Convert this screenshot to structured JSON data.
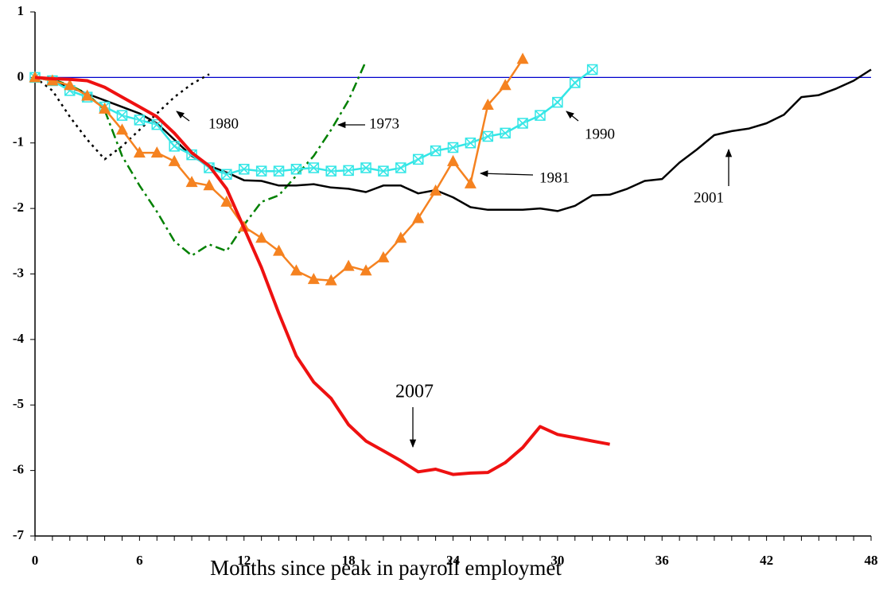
{
  "chart_data": {
    "type": "line",
    "x_label": "Months since peak in payroll employmet",
    "x": [
      0,
      1,
      2,
      3,
      4,
      5,
      6,
      7,
      8,
      9,
      10,
      11,
      12,
      13,
      14,
      15,
      16,
      17,
      18,
      19,
      20,
      21,
      22,
      23,
      24,
      25,
      26,
      27,
      28,
      29,
      30,
      31,
      32,
      33,
      34,
      35,
      36,
      37,
      38,
      39,
      40,
      41,
      42,
      43,
      44,
      45,
      46,
      47,
      48
    ],
    "xlim": [
      0,
      48
    ],
    "xticks": [
      0,
      6,
      12,
      18,
      24,
      30,
      36,
      42,
      48
    ],
    "ylim": [
      -7,
      1
    ],
    "yticks": [
      1,
      0,
      -1,
      -2,
      -3,
      -4,
      -5,
      -6,
      -7
    ],
    "reference_line": {
      "value": 0,
      "color": "#0000cc"
    },
    "series": [
      {
        "name": "1980",
        "color": "#000000",
        "dash": "dotted",
        "values": [
          0,
          -0.2,
          -0.6,
          -0.95,
          -1.25,
          -1.05,
          -0.8,
          -0.55,
          -0.3,
          -0.1,
          0.05,
          null,
          null,
          null,
          null,
          null,
          null,
          null,
          null,
          null,
          null,
          null,
          null,
          null,
          null,
          null,
          null,
          null,
          null,
          null,
          null,
          null,
          null,
          null,
          null,
          null,
          null,
          null,
          null,
          null,
          null,
          null,
          null,
          null,
          null,
          null,
          null,
          null,
          null
        ]
      },
      {
        "name": "1973",
        "color": "#008000",
        "dash": "dashdot",
        "values": [
          0,
          -0.03,
          -0.12,
          -0.25,
          -0.5,
          -1.2,
          -1.65,
          -2.05,
          -2.5,
          -2.72,
          -2.55,
          -2.65,
          -2.25,
          -1.9,
          -1.8,
          -1.5,
          -1.2,
          -0.8,
          -0.35,
          0.25,
          null,
          null,
          null,
          null,
          null,
          null,
          null,
          null,
          null,
          null,
          null,
          null,
          null,
          null,
          null,
          null,
          null,
          null,
          null,
          null,
          null,
          null,
          null,
          null,
          null,
          null,
          null,
          null,
          null
        ]
      },
      {
        "name": "2001",
        "color": "#000000",
        "dash": "solid",
        "values": [
          0,
          -0.05,
          -0.15,
          -0.25,
          -0.35,
          -0.45,
          -0.55,
          -0.7,
          -0.95,
          -1.2,
          -1.35,
          -1.45,
          -1.57,
          -1.58,
          -1.65,
          -1.65,
          -1.63,
          -1.68,
          -1.7,
          -1.75,
          -1.65,
          -1.65,
          -1.77,
          -1.72,
          -1.83,
          -1.98,
          -2.02,
          -2.02,
          -2.02,
          -2.0,
          -2.04,
          -1.96,
          -1.8,
          -1.79,
          -1.7,
          -1.58,
          -1.55,
          -1.3,
          -1.1,
          -0.88,
          -0.82,
          -0.78,
          -0.7,
          -0.57,
          -0.3,
          -0.27,
          -0.17,
          -0.05,
          0.12
        ]
      },
      {
        "name": "1990",
        "color": "#33e6e6",
        "dash": "solid",
        "marker": "square-x",
        "values": [
          0,
          -0.05,
          -0.2,
          -0.3,
          -0.45,
          -0.58,
          -0.65,
          -0.72,
          -1.05,
          -1.18,
          -1.38,
          -1.48,
          -1.4,
          -1.43,
          -1.43,
          -1.4,
          -1.38,
          -1.43,
          -1.42,
          -1.38,
          -1.43,
          -1.38,
          -1.25,
          -1.12,
          -1.07,
          -1.0,
          -0.9,
          -0.85,
          -0.7,
          -0.58,
          -0.38,
          -0.08,
          0.12,
          null,
          null,
          null,
          null,
          null,
          null,
          null,
          null,
          null,
          null,
          null,
          null,
          null,
          null,
          null,
          null
        ]
      },
      {
        "name": "1981",
        "color": "#f58220",
        "dash": "solid",
        "marker": "triangle",
        "values": [
          0,
          -0.05,
          -0.12,
          -0.28,
          -0.48,
          -0.8,
          -1.15,
          -1.15,
          -1.28,
          -1.6,
          -1.65,
          -1.9,
          -2.28,
          -2.45,
          -2.65,
          -2.95,
          -3.08,
          -3.1,
          -2.88,
          -2.95,
          -2.75,
          -2.45,
          -2.15,
          -1.73,
          -1.28,
          -1.62,
          -0.42,
          -0.12,
          0.28,
          null,
          null,
          null,
          null,
          null,
          null,
          null,
          null,
          null,
          null,
          null,
          null,
          null,
          null,
          null,
          null,
          null,
          null,
          null,
          null
        ]
      },
      {
        "name": "2007",
        "color": "#ee1111",
        "dash": "solid",
        "width": 4,
        "values": [
          0,
          -0.02,
          -0.03,
          -0.05,
          -0.15,
          -0.3,
          -0.45,
          -0.6,
          -0.85,
          -1.15,
          -1.35,
          -1.7,
          -2.3,
          -2.9,
          -3.6,
          -4.25,
          -4.65,
          -4.9,
          -5.3,
          -5.55,
          -5.7,
          -5.85,
          -6.02,
          -5.98,
          -6.06,
          -6.04,
          -6.03,
          -5.88,
          -5.65,
          -5.33,
          -5.45,
          -5.5,
          -5.55,
          -5.6,
          null,
          null,
          null,
          null,
          null,
          null,
          null,
          null,
          null,
          null,
          null,
          null,
          null,
          null,
          null
        ]
      }
    ]
  }
}
